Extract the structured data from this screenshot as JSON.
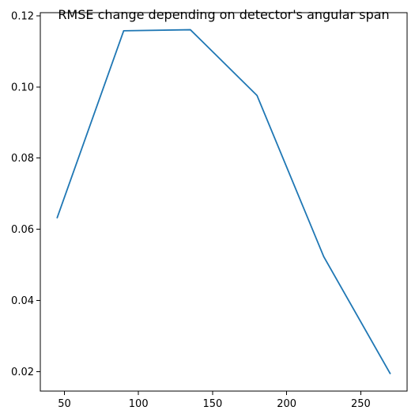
{
  "chart_data": {
    "type": "line",
    "title": "RMSE change depending on detector's angular span",
    "xlabel": "",
    "ylabel": "",
    "x": [
      45,
      90,
      135,
      180,
      225,
      270
    ],
    "series": [
      {
        "values": [
          0.0631,
          0.1158,
          0.1161,
          0.0976,
          0.0523,
          0.0193
        ],
        "color": "#1f77b4"
      }
    ],
    "xlim": [
      33.75,
      281.25
    ],
    "ylim": [
      0.0145,
      0.1209
    ],
    "xticks": [
      50,
      100,
      150,
      200,
      250
    ],
    "xtick_labels": [
      "50",
      "100",
      "150",
      "200",
      "250"
    ],
    "yticks": [
      0.02,
      0.04,
      0.06,
      0.08,
      0.1,
      0.12
    ],
    "ytick_labels": [
      "0.02",
      "0.04",
      "0.06",
      "0.08",
      "0.10",
      "0.12"
    ],
    "grid": false,
    "legend": "none"
  }
}
